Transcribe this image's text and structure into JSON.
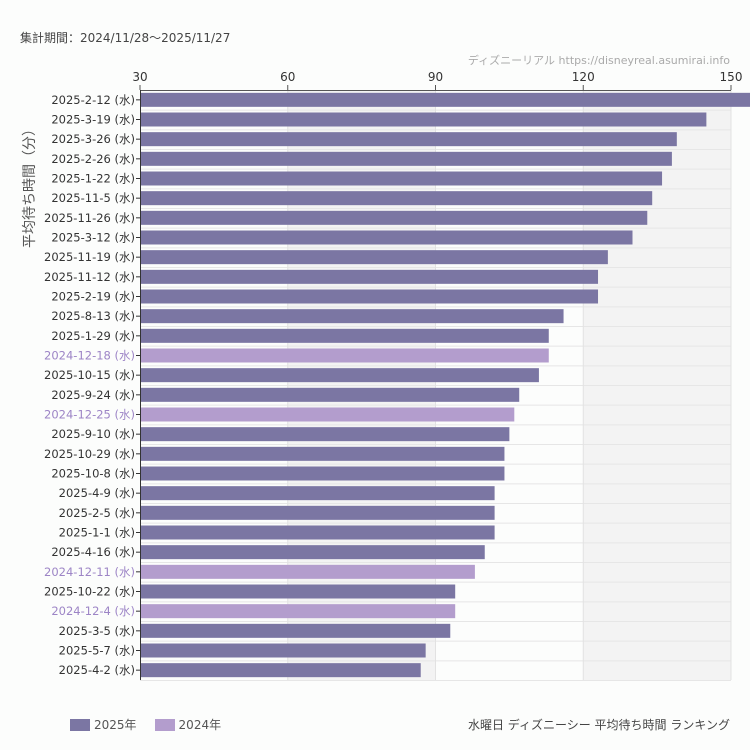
{
  "header": {
    "period": "集計期間：2024/11/28〜2025/11/27",
    "credit": "ディズニーリアル https://disneyreal.asumirai.info"
  },
  "footer": {
    "title": "水曜日 ディズニーシー 平均待ち時間 ランキング"
  },
  "colors": {
    "2025": "#7b76a3",
    "2024": "#b39dcd",
    "label2024": "#9d85c6"
  },
  "chart_data": {
    "type": "bar",
    "orientation": "horizontal",
    "ylabel": "平均待ち時間（分）",
    "xlim": [
      30,
      150
    ],
    "xticks": [
      "30",
      "60",
      "90",
      "120",
      "150"
    ],
    "grid": true,
    "legend": {
      "placement": "bottom-left",
      "entries": [
        "2025年",
        "2024年"
      ]
    },
    "categories": [
      "2025-2-12 (水)",
      "2025-3-19 (水)",
      "2025-3-26 (水)",
      "2025-2-26 (水)",
      "2025-1-22 (水)",
      "2025-11-5 (水)",
      "2025-11-26 (水)",
      "2025-3-12 (水)",
      "2025-11-19 (水)",
      "2025-11-12 (水)",
      "2025-2-19 (水)",
      "2025-8-13 (水)",
      "2025-1-29 (水)",
      "2024-12-18 (水)",
      "2025-10-15 (水)",
      "2025-9-24 (水)",
      "2024-12-25 (水)",
      "2025-9-10 (水)",
      "2025-10-29 (水)",
      "2025-10-8 (水)",
      "2025-4-9 (水)",
      "2025-2-5 (水)",
      "2025-1-1 (水)",
      "2025-4-16 (水)",
      "2024-12-11 (水)",
      "2025-10-22 (水)",
      "2024-12-4 (水)",
      "2025-3-5 (水)",
      "2025-5-7 (水)",
      "2025-4-2 (水)"
    ],
    "values": [
      155,
      145,
      139,
      138,
      136,
      134,
      133,
      130,
      125,
      123,
      123,
      116,
      113,
      113,
      111,
      107,
      106,
      105,
      104,
      104,
      102,
      102,
      102,
      100,
      98,
      94,
      94,
      93,
      88,
      87
    ],
    "years": [
      "2025",
      "2025",
      "2025",
      "2025",
      "2025",
      "2025",
      "2025",
      "2025",
      "2025",
      "2025",
      "2025",
      "2025",
      "2025",
      "2024",
      "2025",
      "2025",
      "2024",
      "2025",
      "2025",
      "2025",
      "2025",
      "2025",
      "2025",
      "2025",
      "2024",
      "2025",
      "2024",
      "2025",
      "2025",
      "2025"
    ]
  }
}
